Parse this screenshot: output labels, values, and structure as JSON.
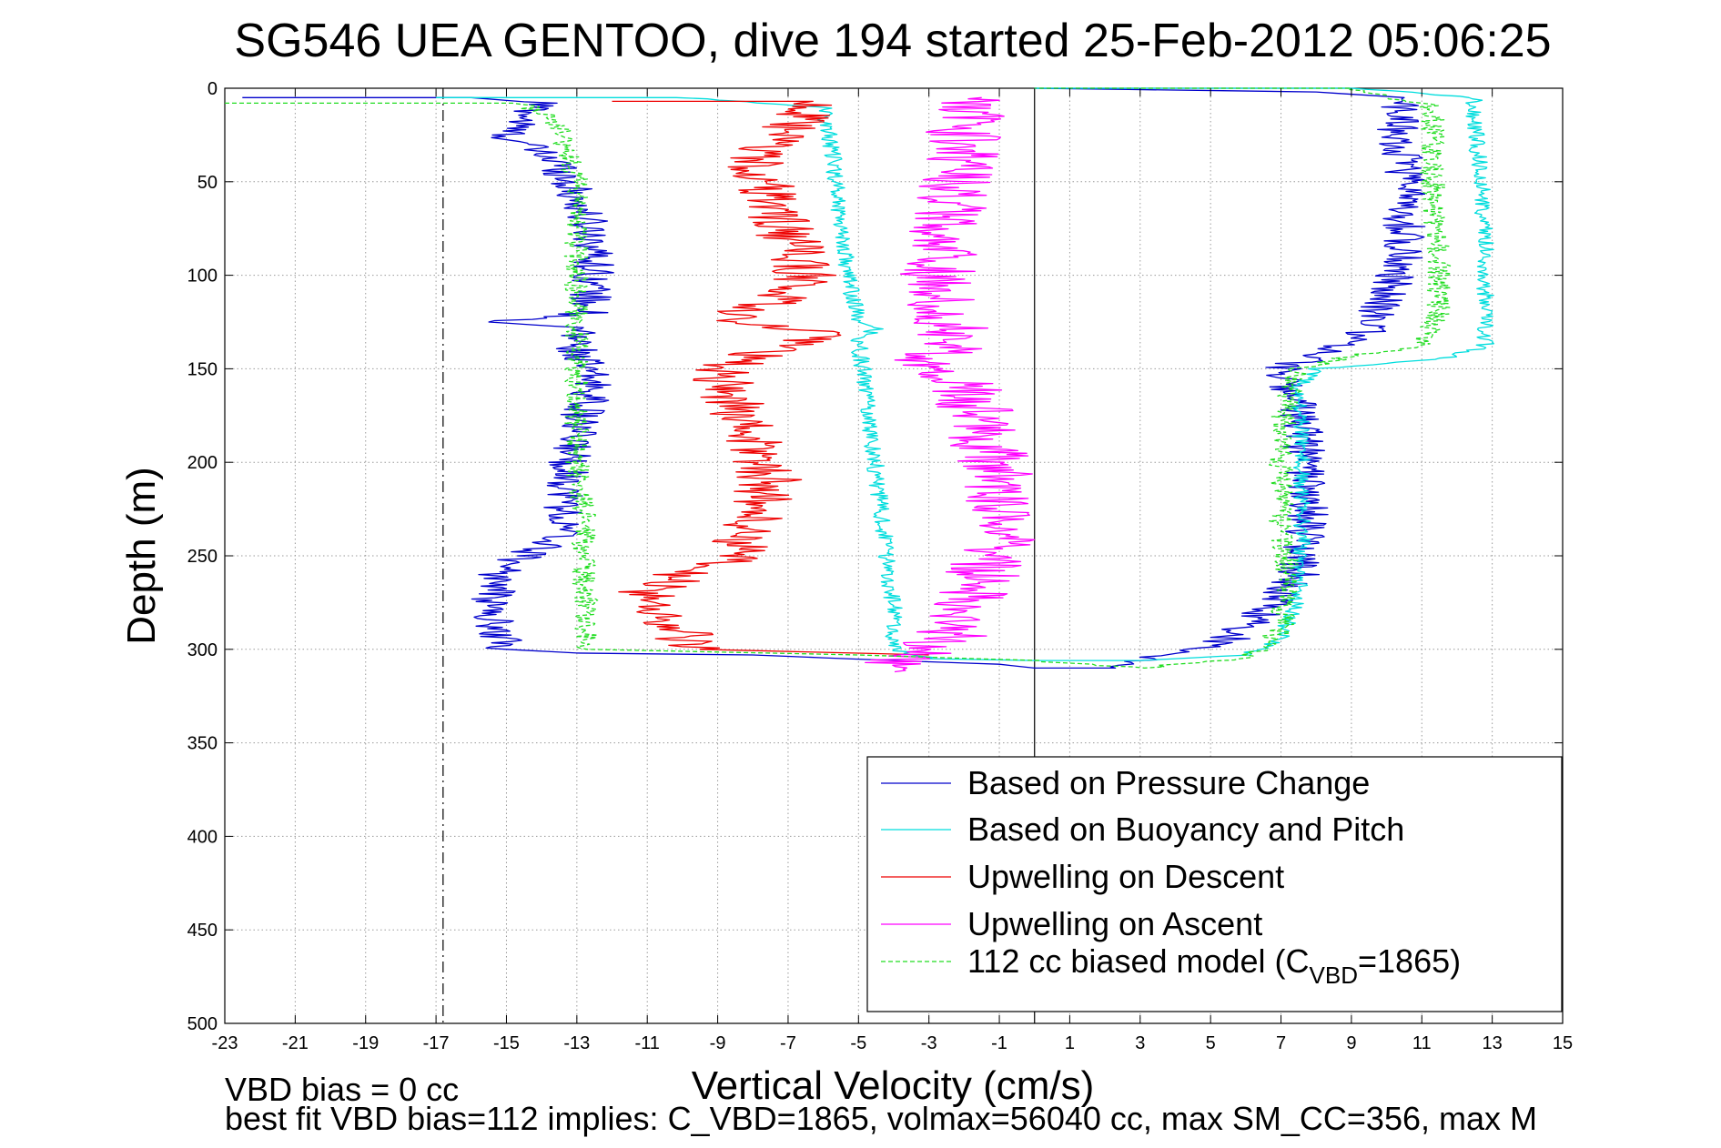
{
  "chart_data": {
    "type": "line",
    "title": "SG546 UEA GENTOO, dive 194 started 25-Feb-2012 05:06:25",
    "xlabel": "Vertical Velocity (cm/s)",
    "ylabel": "Depth (m)",
    "xlim": [
      -23,
      15
    ],
    "ylim": [
      500,
      0
    ],
    "y_reversed": true,
    "grid": true,
    "legend_position": "bottom-right",
    "x_ticks": [
      -23,
      -21,
      -19,
      -17,
      -15,
      -13,
      -11,
      -9,
      -7,
      -5,
      -3,
      -1,
      1,
      3,
      5,
      7,
      9,
      11,
      13,
      15
    ],
    "y_ticks": [
      0,
      50,
      100,
      150,
      200,
      250,
      300,
      350,
      400,
      450,
      500
    ],
    "reference_lines": [
      {
        "x": 0,
        "style": "solid",
        "color": "#000000"
      },
      {
        "x": -16.8,
        "style": "dashdot",
        "color": "#000000"
      }
    ],
    "series": [
      {
        "name": "Based on Pressure Change",
        "color": "#0000cc",
        "style": "solid",
        "noise": 0.6,
        "points": [
          [
            -22.5,
            5
          ],
          [
            -16.0,
            5
          ],
          [
            -14.0,
            8
          ],
          [
            -15.0,
            25
          ],
          [
            -13.5,
            40
          ],
          [
            -13.0,
            60
          ],
          [
            -12.5,
            80
          ],
          [
            -12.5,
            100
          ],
          [
            -12.7,
            120
          ],
          [
            -15.5,
            125
          ],
          [
            -13.0,
            128
          ],
          [
            -13.0,
            140
          ],
          [
            -12.5,
            160
          ],
          [
            -13.0,
            180
          ],
          [
            -13.2,
            200
          ],
          [
            -13.3,
            220
          ],
          [
            -13.5,
            240
          ],
          [
            -14.5,
            250
          ],
          [
            -15.2,
            260
          ],
          [
            -15.5,
            280
          ],
          [
            -15.0,
            300
          ],
          [
            -13.0,
            302
          ],
          [
            -8.0,
            303
          ],
          [
            -4.0,
            306
          ],
          [
            -1.0,
            308
          ],
          [
            0.0,
            310
          ],
          [
            2.0,
            310
          ],
          [
            4.0,
            302
          ],
          [
            5.5,
            295
          ],
          [
            6.5,
            280
          ],
          [
            7.5,
            260
          ],
          [
            7.8,
            230
          ],
          [
            7.7,
            200
          ],
          [
            7.5,
            170
          ],
          [
            7.0,
            150
          ],
          [
            8.5,
            140
          ],
          [
            9.5,
            130
          ],
          [
            10.0,
            110
          ],
          [
            10.5,
            90
          ],
          [
            10.5,
            60
          ],
          [
            10.5,
            40
          ],
          [
            10.3,
            20
          ],
          [
            10.5,
            5
          ],
          [
            8.0,
            2
          ],
          [
            0.0,
            0
          ]
        ]
      },
      {
        "name": "Based on Buoyancy and Pitch",
        "color": "#00dddd",
        "style": "solid",
        "noise": 0.25,
        "points": [
          [
            -17.0,
            5
          ],
          [
            -10.0,
            5
          ],
          [
            -6.0,
            10
          ],
          [
            -5.7,
            40
          ],
          [
            -5.5,
            70
          ],
          [
            -5.3,
            100
          ],
          [
            -5.0,
            125
          ],
          [
            -4.5,
            128
          ],
          [
            -5.0,
            135
          ],
          [
            -4.8,
            160
          ],
          [
            -4.6,
            190
          ],
          [
            -4.4,
            220
          ],
          [
            -4.2,
            250
          ],
          [
            -4.0,
            280
          ],
          [
            -4.0,
            300
          ],
          [
            -3.0,
            305
          ],
          [
            0.0,
            306
          ],
          [
            3.0,
            306
          ],
          [
            6.0,
            303
          ],
          [
            7.0,
            295
          ],
          [
            7.5,
            270
          ],
          [
            7.6,
            240
          ],
          [
            7.6,
            200
          ],
          [
            7.5,
            160
          ],
          [
            8.0,
            150
          ],
          [
            11.5,
            145
          ],
          [
            12.8,
            138
          ],
          [
            12.8,
            110
          ],
          [
            12.8,
            80
          ],
          [
            12.7,
            50
          ],
          [
            12.5,
            20
          ],
          [
            12.5,
            5
          ],
          [
            9.0,
            0
          ],
          [
            0.0,
            0
          ]
        ]
      },
      {
        "name": "Upwelling on Descent",
        "color": "#ee0000",
        "style": "solid",
        "noise": 0.9,
        "points": [
          [
            -12.0,
            7
          ],
          [
            -6.2,
            7
          ],
          [
            -7.0,
            20
          ],
          [
            -8.0,
            40
          ],
          [
            -7.5,
            60
          ],
          [
            -7.0,
            80
          ],
          [
            -6.5,
            100
          ],
          [
            -7.5,
            115
          ],
          [
            -9.0,
            125
          ],
          [
            -6.0,
            130
          ],
          [
            -9.0,
            150
          ],
          [
            -8.5,
            170
          ],
          [
            -8.0,
            190
          ],
          [
            -7.5,
            210
          ],
          [
            -8.0,
            230
          ],
          [
            -8.5,
            250
          ],
          [
            -10.0,
            260
          ],
          [
            -11.0,
            270
          ],
          [
            -10.5,
            285
          ],
          [
            -9.5,
            300
          ],
          [
            -3.0,
            303
          ]
        ]
      },
      {
        "name": "Upwelling on Ascent",
        "color": "#ff00ff",
        "style": "solid",
        "noise": 1.1,
        "points": [
          [
            -4.5,
            312
          ],
          [
            -3.5,
            305
          ],
          [
            -2.5,
            295
          ],
          [
            -2.0,
            280
          ],
          [
            -1.5,
            260
          ],
          [
            -1.0,
            240
          ],
          [
            -1.0,
            220
          ],
          [
            -1.2,
            200
          ],
          [
            -1.5,
            180
          ],
          [
            -2.0,
            160
          ],
          [
            -2.5,
            150
          ],
          [
            -4.0,
            144
          ],
          [
            -2.0,
            140
          ],
          [
            -2.5,
            120
          ],
          [
            -2.8,
            100
          ],
          [
            -2.5,
            80
          ],
          [
            -2.3,
            60
          ],
          [
            -2.0,
            40
          ],
          [
            -2.0,
            20
          ],
          [
            -1.5,
            5
          ]
        ]
      },
      {
        "name": "112 cc biased model (C_VBD=1865)",
        "name_main": "112 cc biased model (C",
        "name_sub": "VBD",
        "name_tail": "=1865)",
        "color": "#22dd22",
        "style": "dashed",
        "noise": 0.35,
        "points": [
          [
            -23.0,
            8
          ],
          [
            -14.5,
            8
          ],
          [
            -13.5,
            20
          ],
          [
            -13.0,
            50
          ],
          [
            -13.0,
            80
          ],
          [
            -13.0,
            110
          ],
          [
            -13.0,
            128
          ],
          [
            -13.0,
            140
          ],
          [
            -13.0,
            170
          ],
          [
            -13.0,
            200
          ],
          [
            -12.8,
            230
          ],
          [
            -12.8,
            260
          ],
          [
            -12.7,
            280
          ],
          [
            -12.7,
            300
          ],
          [
            -5.0,
            303
          ],
          [
            0.0,
            306
          ],
          [
            3.0,
            310
          ],
          [
            6.0,
            305
          ],
          [
            7.0,
            290
          ],
          [
            7.2,
            260
          ],
          [
            7.0,
            230
          ],
          [
            7.0,
            200
          ],
          [
            7.1,
            170
          ],
          [
            7.5,
            150
          ],
          [
            9.0,
            143
          ],
          [
            11.0,
            138
          ],
          [
            11.5,
            120
          ],
          [
            11.5,
            90
          ],
          [
            11.3,
            60
          ],
          [
            11.3,
            30
          ],
          [
            11.3,
            10
          ],
          [
            9.0,
            0
          ],
          [
            0.0,
            0
          ]
        ]
      }
    ],
    "annotations": [
      {
        "id": "vbd_bias",
        "text": "VBD bias = 0 cc"
      },
      {
        "id": "best_fit",
        "text": "best fit VBD bias=112 implies: C_VBD=1865, volmax=56040 cc, max SM_CC=356, max M"
      }
    ]
  }
}
